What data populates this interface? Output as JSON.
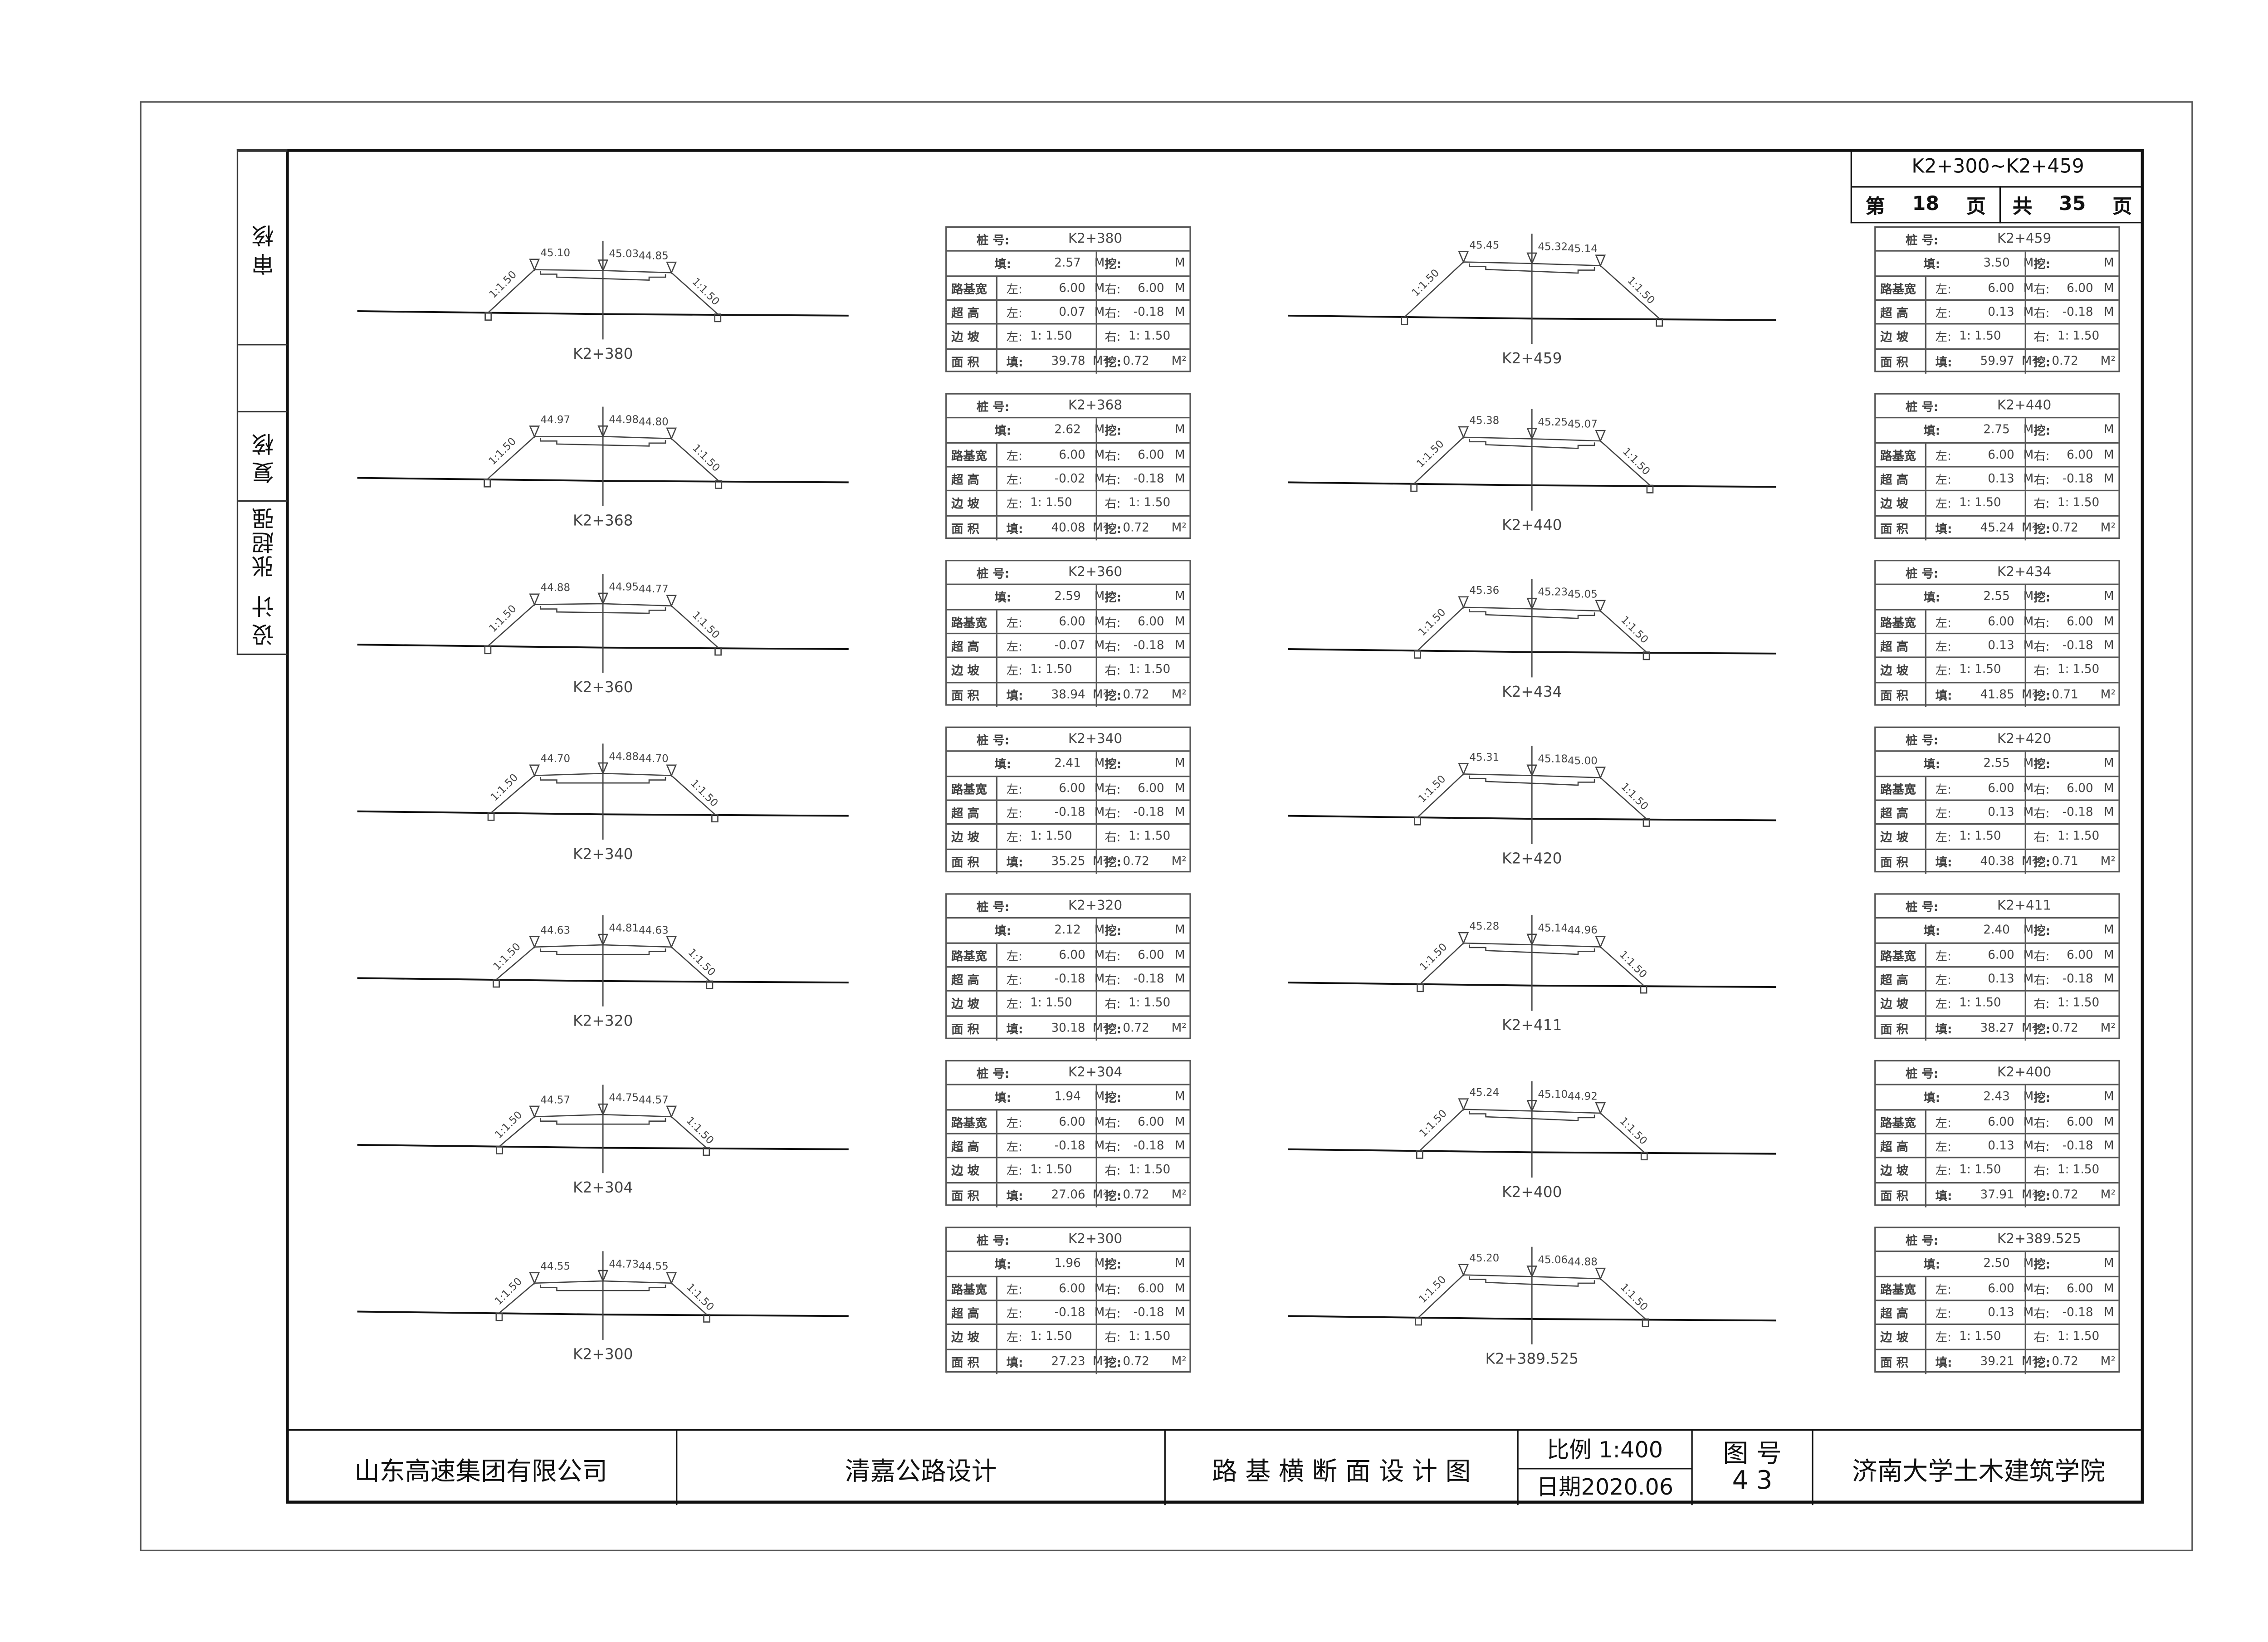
{
  "header": {
    "range": "K2+300~K2+459",
    "page_prefix": "第",
    "page": "18",
    "page_suffix": "页",
    "total_prefix": "共",
    "total": "35",
    "total_suffix": "页"
  },
  "signatures": {
    "review": "审核",
    "recheck": "复核",
    "designer_name": "张超强",
    "design": "设计"
  },
  "title_block": {
    "company": "山东高速集团有限公司",
    "project": "清嘉公路设计",
    "drawing_title": "路 基 横 断 面 设 计 图",
    "scale": "比例 1:400",
    "date": "日期2020.06",
    "drawing_no_label": "图 号",
    "drawing_no": "4 3",
    "institution": "济南大学土木建筑学院"
  },
  "table_labels": {
    "station": "桩 号:",
    "fill": "填:",
    "cut": "挖:",
    "width": "路基宽",
    "left": "左:",
    "right": "右:",
    "superelevation": "超 高",
    "slope": "边 坡",
    "area": "面 积",
    "unit_m": "M",
    "unit_m2": "M²",
    "ratio": "1:"
  },
  "slope_label": "1:1.50",
  "sections_left": [
    {
      "station": "K2+380",
      "fill": "2.57",
      "width_l": "6.00",
      "width_r": "6.00",
      "super_l": "0.07",
      "super_r": "-0.18",
      "slope_l": "1.50",
      "slope_r": "1.50",
      "area_fill": "39.78",
      "area_cut": "0.72",
      "elev": [
        "45.10",
        "45.03",
        "44.85"
      ]
    },
    {
      "station": "K2+368",
      "fill": "2.62",
      "width_l": "6.00",
      "width_r": "6.00",
      "super_l": "-0.02",
      "super_r": "-0.18",
      "slope_l": "1.50",
      "slope_r": "1.50",
      "area_fill": "40.08",
      "area_cut": "0.72",
      "elev": [
        "44.97",
        "44.98",
        "44.80"
      ]
    },
    {
      "station": "K2+360",
      "fill": "2.59",
      "width_l": "6.00",
      "width_r": "6.00",
      "super_l": "-0.07",
      "super_r": "-0.18",
      "slope_l": "1.50",
      "slope_r": "1.50",
      "area_fill": "38.94",
      "area_cut": "0.72",
      "elev": [
        "44.88",
        "44.95",
        "44.77"
      ]
    },
    {
      "station": "K2+340",
      "fill": "2.41",
      "width_l": "6.00",
      "width_r": "6.00",
      "super_l": "-0.18",
      "super_r": "-0.18",
      "slope_l": "1.50",
      "slope_r": "1.50",
      "area_fill": "35.25",
      "area_cut": "0.72",
      "elev": [
        "44.70",
        "44.88",
        "44.70"
      ]
    },
    {
      "station": "K2+320",
      "fill": "2.12",
      "width_l": "6.00",
      "width_r": "6.00",
      "super_l": "-0.18",
      "super_r": "-0.18",
      "slope_l": "1.50",
      "slope_r": "1.50",
      "area_fill": "30.18",
      "area_cut": "0.72",
      "elev": [
        "44.63",
        "44.81",
        "44.63"
      ]
    },
    {
      "station": "K2+304",
      "fill": "1.94",
      "width_l": "6.00",
      "width_r": "6.00",
      "super_l": "-0.18",
      "super_r": "-0.18",
      "slope_l": "1.50",
      "slope_r": "1.50",
      "area_fill": "27.06",
      "area_cut": "0.72",
      "elev": [
        "44.57",
        "44.75",
        "44.57"
      ]
    },
    {
      "station": "K2+300",
      "fill": "1.96",
      "width_l": "6.00",
      "width_r": "6.00",
      "super_l": "-0.18",
      "super_r": "-0.18",
      "slope_l": "1.50",
      "slope_r": "1.50",
      "area_fill": "27.23",
      "area_cut": "0.72",
      "elev": [
        "44.55",
        "44.73",
        "44.55"
      ]
    }
  ],
  "sections_right": [
    {
      "station": "K2+459",
      "fill": "3.50",
      "width_l": "6.00",
      "width_r": "6.00",
      "super_l": "0.13",
      "super_r": "-0.18",
      "slope_l": "1.50",
      "slope_r": "1.50",
      "area_fill": "59.97",
      "area_cut": "0.72",
      "elev": [
        "45.45",
        "45.32",
        "45.14"
      ]
    },
    {
      "station": "K2+440",
      "fill": "2.75",
      "width_l": "6.00",
      "width_r": "6.00",
      "super_l": "0.13",
      "super_r": "-0.18",
      "slope_l": "1.50",
      "slope_r": "1.50",
      "area_fill": "45.24",
      "area_cut": "0.72",
      "elev": [
        "45.38",
        "45.25",
        "45.07"
      ]
    },
    {
      "station": "K2+434",
      "fill": "2.55",
      "width_l": "6.00",
      "width_r": "6.00",
      "super_l": "0.13",
      "super_r": "-0.18",
      "slope_l": "1.50",
      "slope_r": "1.50",
      "area_fill": "41.85",
      "area_cut": "0.71",
      "elev": [
        "45.36",
        "45.23",
        "45.05"
      ]
    },
    {
      "station": "K2+420",
      "fill": "2.55",
      "width_l": "6.00",
      "width_r": "6.00",
      "super_l": "0.13",
      "super_r": "-0.18",
      "slope_l": "1.50",
      "slope_r": "1.50",
      "area_fill": "40.38",
      "area_cut": "0.71",
      "elev": [
        "45.31",
        "45.18",
        "45.00"
      ]
    },
    {
      "station": "K2+411",
      "fill": "2.40",
      "width_l": "6.00",
      "width_r": "6.00",
      "super_l": "0.13",
      "super_r": "-0.18",
      "slope_l": "1.50",
      "slope_r": "1.50",
      "area_fill": "38.27",
      "area_cut": "0.72",
      "elev": [
        "45.28",
        "45.14",
        "44.96"
      ]
    },
    {
      "station": "K2+400",
      "fill": "2.43",
      "width_l": "6.00",
      "width_r": "6.00",
      "super_l": "0.13",
      "super_r": "-0.18",
      "slope_l": "1.50",
      "slope_r": "1.50",
      "area_fill": "37.91",
      "area_cut": "0.72",
      "elev": [
        "45.24",
        "45.10",
        "44.92"
      ]
    },
    {
      "station": "K2+389.525",
      "fill": "2.50",
      "width_l": "6.00",
      "width_r": "6.00",
      "super_l": "0.13",
      "super_r": "-0.18",
      "slope_l": "1.50",
      "slope_r": "1.50",
      "area_fill": "39.21",
      "area_cut": "0.72",
      "elev": [
        "45.20",
        "45.06",
        "44.88"
      ]
    }
  ]
}
